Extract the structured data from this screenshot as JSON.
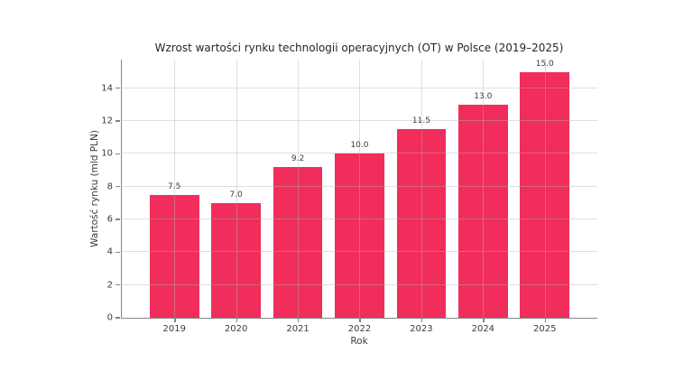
{
  "chart_data": {
    "type": "bar",
    "title": "Wzrost wartości rynku technologii operacyjnych (OT) w Polsce (2019–2025)",
    "xlabel": "Rok",
    "ylabel": "Wartość rynku (mld PLN)",
    "categories": [
      "2019",
      "2020",
      "2021",
      "2022",
      "2023",
      "2024",
      "2025"
    ],
    "values": [
      7.5,
      7.0,
      9.2,
      10.0,
      11.5,
      13.0,
      15.0
    ],
    "value_labels": [
      "7.5",
      "7.0",
      "9.2",
      "10.0",
      "11.5",
      "13.0",
      "15.0"
    ],
    "yticks": [
      0,
      2,
      4,
      6,
      8,
      10,
      12,
      14
    ],
    "ylim": [
      0,
      15.75
    ],
    "grid": true,
    "grid_position": "above-bars",
    "legend": "none",
    "bar_color": "#F02D5B",
    "axis_color": "#858585",
    "text_color": "#3b3b3b",
    "background_color": "#ffffff"
  }
}
